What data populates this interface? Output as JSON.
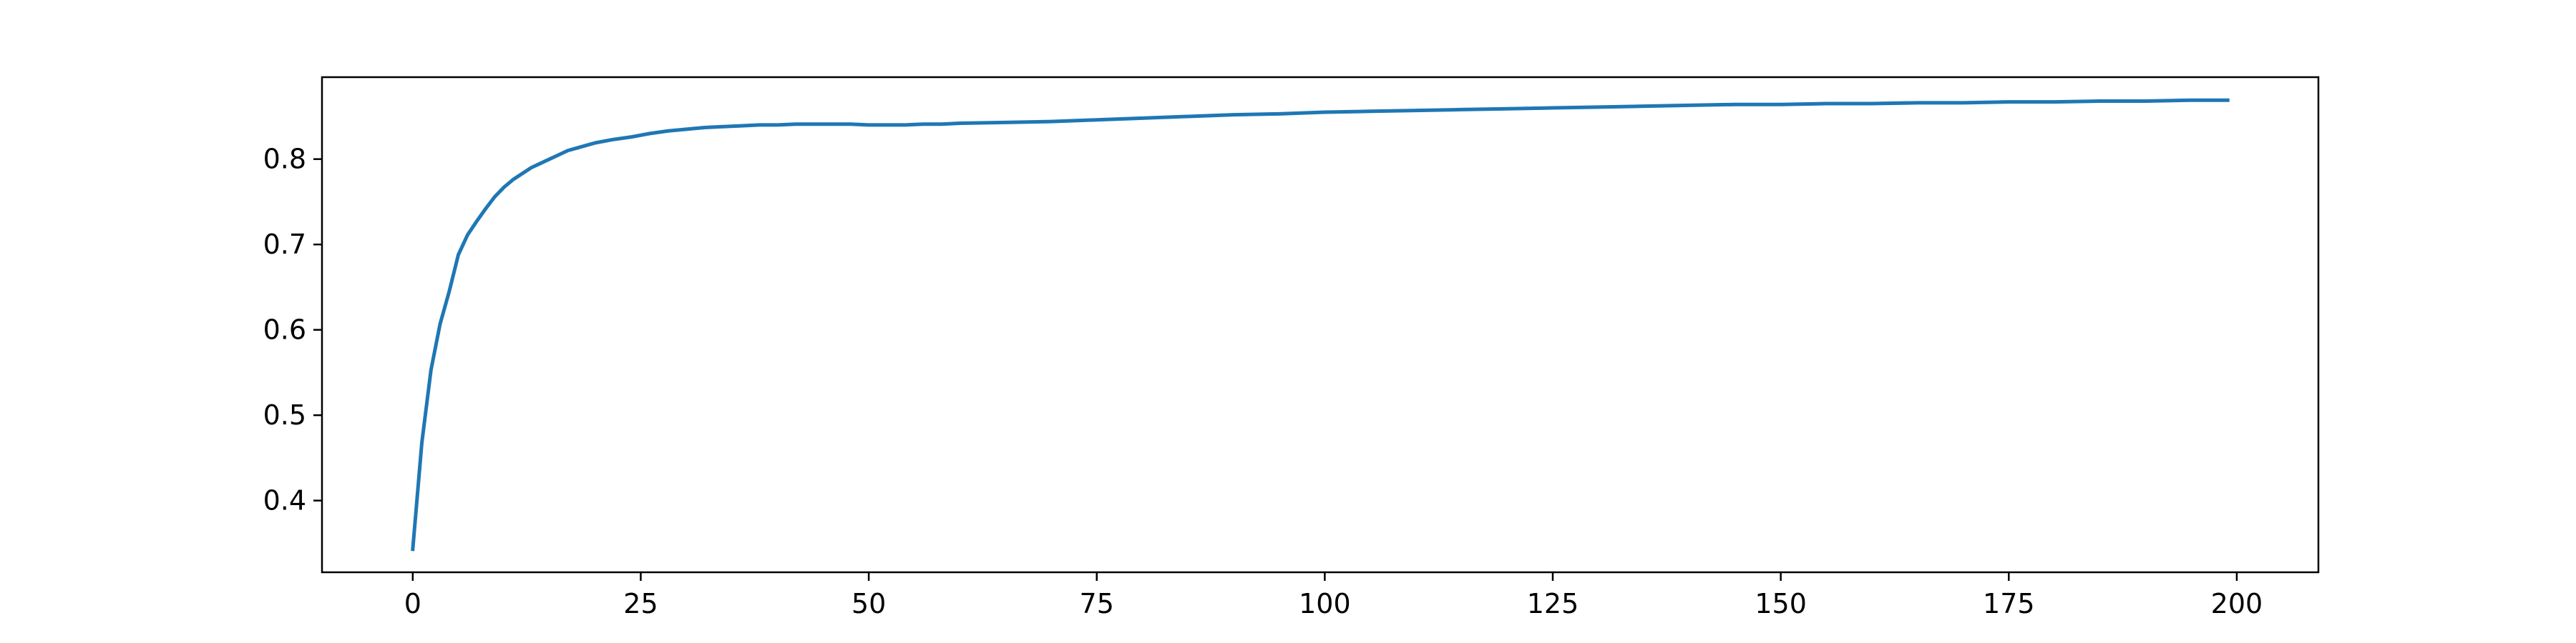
{
  "chart_data": {
    "type": "line",
    "title": "",
    "xlabel": "",
    "ylabel": "",
    "xlim": [
      -9.95,
      208.95
    ],
    "ylim": [
      0.316,
      0.896
    ],
    "xticks": [
      0,
      25,
      50,
      75,
      100,
      125,
      150,
      175,
      200
    ],
    "xtick_labels": [
      "0",
      "25",
      "50",
      "75",
      "100",
      "125",
      "150",
      "175",
      "200"
    ],
    "yticks": [
      0.4,
      0.5,
      0.6,
      0.7,
      0.8
    ],
    "ytick_labels": [
      "0.4",
      "0.5",
      "0.6",
      "0.7",
      "0.8"
    ],
    "grid": false,
    "legend": "none",
    "series": [
      {
        "color": "#1f77b4",
        "x": [
          0,
          1,
          2,
          3,
          4,
          5,
          6,
          7,
          8,
          9,
          10,
          11,
          12,
          13,
          14,
          15,
          16,
          17,
          18,
          19,
          20,
          22,
          24,
          26,
          28,
          30,
          32,
          34,
          36,
          38,
          40,
          42,
          44,
          46,
          48,
          50,
          52,
          54,
          56,
          58,
          60,
          65,
          70,
          75,
          80,
          85,
          90,
          95,
          100,
          105,
          110,
          115,
          120,
          125,
          130,
          135,
          140,
          145,
          150,
          155,
          160,
          165,
          170,
          175,
          180,
          185,
          190,
          195,
          199
        ],
        "y": [
          0.343,
          0.468,
          0.553,
          0.607,
          0.645,
          0.688,
          0.711,
          0.727,
          0.742,
          0.756,
          0.767,
          0.776,
          0.783,
          0.79,
          0.795,
          0.8,
          0.805,
          0.81,
          0.813,
          0.816,
          0.819,
          0.823,
          0.826,
          0.83,
          0.833,
          0.835,
          0.837,
          0.838,
          0.839,
          0.84,
          0.84,
          0.841,
          0.841,
          0.841,
          0.841,
          0.84,
          0.84,
          0.84,
          0.841,
          0.841,
          0.842,
          0.843,
          0.844,
          0.846,
          0.848,
          0.85,
          0.852,
          0.853,
          0.855,
          0.856,
          0.857,
          0.858,
          0.859,
          0.86,
          0.861,
          0.862,
          0.863,
          0.864,
          0.864,
          0.865,
          0.865,
          0.866,
          0.866,
          0.867,
          0.867,
          0.868,
          0.868,
          0.869,
          0.869
        ]
      }
    ]
  }
}
